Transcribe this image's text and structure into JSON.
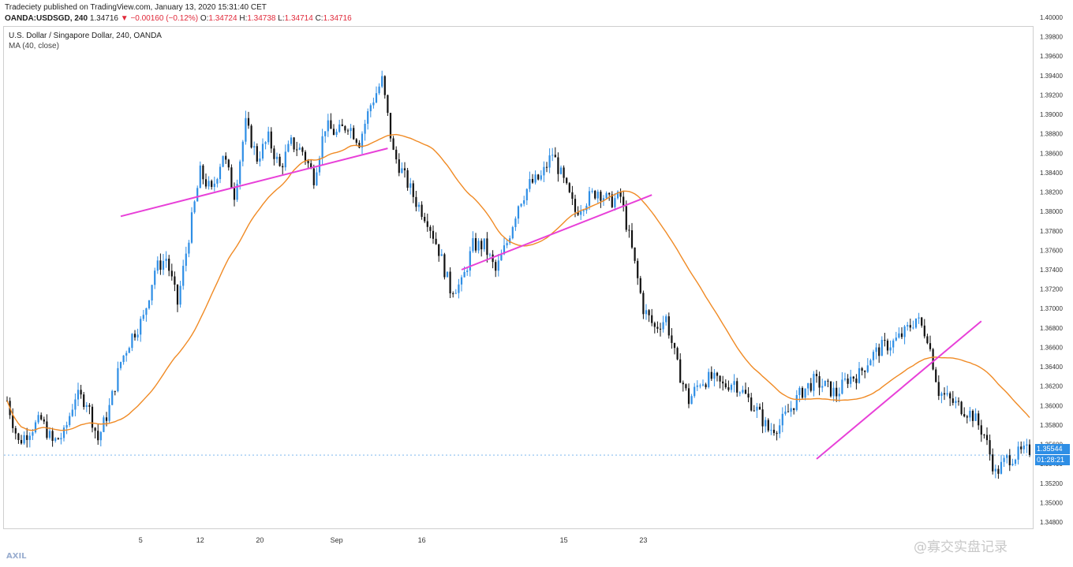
{
  "header": {
    "publisher": "Tradeciety published on TradingView.com, January 13, 2020 15:31:40 CET",
    "symbol": "OANDA:USDSGD, 240",
    "last": "1.34716",
    "change": "−0.00160 (−0.12%)",
    "open_label": "O:",
    "open": "1.34724",
    "high_label": "H:",
    "high": "1.34738",
    "low_label": "L:",
    "low": "1.34714",
    "close_label": "C:",
    "close": "1.34716"
  },
  "legend": {
    "title": "U.S. Dollar / Singapore Dollar, 240, OANDA",
    "ma": "MA (40, close)"
  },
  "price_tags": {
    "price": "1.35544",
    "countdown": "01:28:21"
  },
  "watermark": "@寡交实盘记录",
  "logo": "AXIL",
  "colors": {
    "up_candle": "#2e8ee5",
    "down_candle": "#111111",
    "ma_line": "#f08a24",
    "trendline": "#e840d8",
    "price_tag_bg": "#2e8ee5"
  },
  "chart_data": {
    "type": "candlestick",
    "title": "U.S. Dollar / Singapore Dollar, 240, OANDA",
    "indicator": "MA (40, close)",
    "y_ticks": [
      "1.34800",
      "1.35000",
      "1.35200",
      "1.35400",
      "1.35600",
      "1.35800",
      "1.36000",
      "1.36200",
      "1.36400",
      "1.36600",
      "1.36800",
      "1.37000",
      "1.37200",
      "1.37400",
      "1.37600",
      "1.37800",
      "1.38000",
      "1.38200",
      "1.38400",
      "1.38600",
      "1.38800",
      "1.39000",
      "1.39200",
      "1.39400",
      "1.39600",
      "1.39800",
      "1.40000"
    ],
    "x_ticks": [
      "5",
      "12",
      "20",
      "Sep",
      "16",
      "15",
      "23"
    ],
    "ylim": [
      1.348,
      1.4
    ],
    "price_path": [
      [
        0,
        1.3605
      ],
      [
        4,
        1.3562
      ],
      [
        8,
        1.3575
      ],
      [
        12,
        1.3585
      ],
      [
        16,
        1.3562
      ],
      [
        20,
        1.357
      ],
      [
        24,
        1.361
      ],
      [
        28,
        1.3605
      ],
      [
        32,
        1.3565
      ],
      [
        36,
        1.3598
      ],
      [
        40,
        1.3645
      ],
      [
        44,
        1.3672
      ],
      [
        48,
        1.369
      ],
      [
        52,
        1.374
      ],
      [
        56,
        1.3752
      ],
      [
        60,
        1.3705
      ],
      [
        64,
        1.3775
      ],
      [
        68,
        1.384
      ],
      [
        72,
        1.382
      ],
      [
        76,
        1.386
      ],
      [
        80,
        1.3818
      ],
      [
        84,
        1.389
      ],
      [
        88,
        1.3855
      ],
      [
        92,
        1.3875
      ],
      [
        96,
        1.3845
      ],
      [
        100,
        1.387
      ],
      [
        104,
        1.3862
      ],
      [
        108,
        1.3835
      ],
      [
        112,
        1.3888
      ],
      [
        116,
        1.388
      ],
      [
        120,
        1.389
      ],
      [
        124,
        1.3872
      ],
      [
        128,
        1.391
      ],
      [
        132,
        1.3935
      ],
      [
        136,
        1.386
      ],
      [
        140,
        1.3835
      ],
      [
        144,
        1.381
      ],
      [
        148,
        1.3792
      ],
      [
        152,
        1.376
      ],
      [
        156,
        1.372
      ],
      [
        160,
        1.3725
      ],
      [
        164,
        1.3765
      ],
      [
        168,
        1.3765
      ],
      [
        172,
        1.3738
      ],
      [
        176,
        1.3768
      ],
      [
        180,
        1.3808
      ],
      [
        184,
        1.3828
      ],
      [
        188,
        1.3835
      ],
      [
        192,
        1.386
      ],
      [
        196,
        1.383
      ],
      [
        200,
        1.38
      ],
      [
        204,
        1.3812
      ],
      [
        208,
        1.3822
      ],
      [
        212,
        1.381
      ],
      [
        216,
        1.3815
      ],
      [
        220,
        1.376
      ],
      [
        224,
        1.37
      ],
      [
        228,
        1.368
      ],
      [
        232,
        1.369
      ],
      [
        236,
        1.364
      ],
      [
        240,
        1.3605
      ],
      [
        244,
        1.3625
      ],
      [
        248,
        1.3628
      ],
      [
        252,
        1.362
      ],
      [
        256,
        1.3625
      ],
      [
        260,
        1.361
      ],
      [
        264,
        1.3595
      ],
      [
        268,
        1.3575
      ],
      [
        272,
        1.358
      ],
      [
        276,
        1.3598
      ],
      [
        280,
        1.3615
      ],
      [
        284,
        1.3625
      ],
      [
        288,
        1.362
      ],
      [
        292,
        1.3612
      ],
      [
        296,
        1.3628
      ],
      [
        300,
        1.3632
      ],
      [
        304,
        1.365
      ],
      [
        308,
        1.366
      ],
      [
        312,
        1.3665
      ],
      [
        316,
        1.3675
      ],
      [
        320,
        1.369
      ],
      [
        324,
        1.3672
      ],
      [
        328,
        1.3615
      ],
      [
        332,
        1.3605
      ],
      [
        336,
        1.3598
      ],
      [
        340,
        1.359
      ],
      [
        344,
        1.357
      ],
      [
        348,
        1.353
      ],
      [
        352,
        1.3545
      ],
      [
        356,
        1.355
      ],
      [
        360,
        1.3554
      ]
    ],
    "trendlines": [
      {
        "from": [
          40,
          1.3795
        ],
        "to": [
          134,
          1.3865
        ]
      },
      {
        "from": [
          160,
          1.374
        ],
        "to": [
          227,
          1.3817
        ]
      },
      {
        "from": [
          285,
          1.3545
        ],
        "to": [
          343,
          1.3687
        ]
      }
    ]
  }
}
